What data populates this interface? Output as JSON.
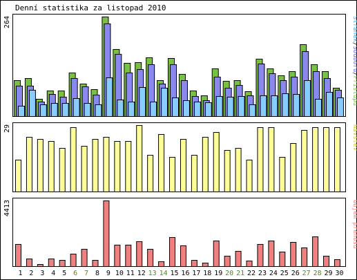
{
  "chart_data": {
    "type": "bar",
    "title": "Denní statistika za listopad 2010",
    "categories": [
      "1",
      "2",
      "3",
      "4",
      "5",
      "6",
      "7",
      "8",
      "9",
      "10",
      "11",
      "12",
      "13",
      "14",
      "15",
      "16",
      "17",
      "18",
      "19",
      "20",
      "21",
      "22",
      "23",
      "24",
      "25",
      "26",
      "27",
      "28",
      "29",
      "30"
    ],
    "weekend_days": [
      "6",
      "7",
      "13",
      "14",
      "20",
      "21",
      "27",
      "28"
    ],
    "colors": {
      "hits": "#7ac143",
      "files": "#8888ee",
      "pages": "#88ccff",
      "visits": "#ffff99",
      "volume": "#f08080",
      "weekend_label": "#4a8a1c",
      "outline": "#000000"
    },
    "panels": [
      {
        "id": "hits",
        "ymax_label": "264",
        "ymax": 264,
        "legend": [
          {
            "text": "Stránek",
            "color": "#4aa3df"
          },
          {
            "text": "/",
            "color": "#000000"
          },
          {
            "text": "Souborů",
            "color": "#6666dd"
          },
          {
            "text": "/",
            "color": "#000000"
          },
          {
            "text": "Přístupů",
            "color": "#7ac143"
          }
        ],
        "series": [
          {
            "name": "Přístupů",
            "color": "#7ac143",
            "values": [
              95,
              100,
              45,
              68,
              67,
              116,
              87,
              71,
              264,
              178,
              141,
              143,
              155,
              95,
              154,
              112,
              67,
              55,
              126,
              93,
              95,
              66,
              153,
              127,
              108,
              119,
              190,
              138,
              119,
              75
            ]
          },
          {
            "name": "Souborů",
            "color": "#8888ee",
            "values": [
              80,
              80,
              38,
              58,
              52,
              100,
              78,
              56,
              245,
              165,
              116,
              124,
              138,
              86,
              138,
              96,
              54,
              42,
              105,
              76,
              83,
              55,
              140,
              113,
              96,
              105,
              172,
              120,
              101,
              69
            ]
          },
          {
            "name": "Stránek",
            "color": "#88ccff",
            "values": [
              28,
              70,
              32,
              35,
              35,
              48,
              35,
              31,
              103,
              44,
              39,
              77,
              38,
              75,
              50,
              42,
              38,
              36,
              53,
              51,
              53,
              32,
              55,
              55,
              60,
              58,
              96,
              45,
              65,
              49
            ]
          }
        ]
      },
      {
        "id": "visits",
        "ymax_label": "29",
        "ymax": 29,
        "legend": [
          {
            "text": "Návštěv",
            "color": "#cccc33"
          }
        ],
        "series": [
          {
            "name": "Návštěv",
            "color": "#ffff99",
            "values": [
              14,
              24,
              23,
              22,
              19,
              28,
              20,
              23,
              24,
              22,
              22,
              29,
              16,
              25,
              15,
              23,
              16,
              24,
              26,
              18,
              19,
              14,
              28,
              28,
              15,
              21,
              27,
              28,
              28,
              28
            ]
          }
        ]
      },
      {
        "id": "volume",
        "ymax_label": "4413",
        "ymax": 4413,
        "legend": [
          {
            "text": "Objem přenosu",
            "color": "#f08080"
          }
        ],
        "series": [
          {
            "name": "Objem přenosu",
            "color": "#f08080",
            "values": [
              1480,
              530,
              150,
              530,
              420,
              850,
              1150,
              400,
              4413,
              1450,
              1450,
              1660,
              1150,
              340,
              1960,
              1400,
              430,
              250,
              1710,
              680,
              1010,
              350,
              1480,
              1730,
              960,
              1620,
              1250,
              2010,
              690,
              480
            ]
          }
        ]
      }
    ]
  }
}
